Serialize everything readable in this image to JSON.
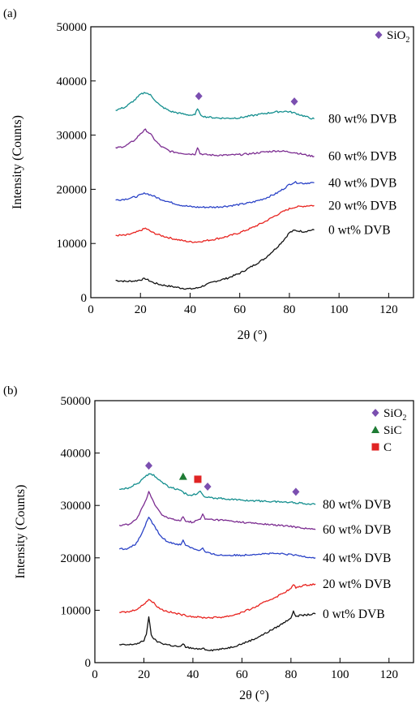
{
  "chart_data": [
    {
      "panel": "(a)",
      "type": "line",
      "xlabel": "2θ (°)",
      "ylabel": "Intensity (Counts)",
      "xlim": [
        0,
        130
      ],
      "ylim": [
        0,
        50000
      ],
      "xticks": [
        0,
        20,
        40,
        60,
        80,
        100,
        120
      ],
      "yticks": [
        0,
        10000,
        20000,
        30000,
        40000,
        50000
      ],
      "legend": [
        {
          "label": "SiO",
          "sub": "2",
          "marker": "diamond",
          "color": "#7b4fb0"
        }
      ],
      "markers": [
        {
          "type": "diamond",
          "color": "#7b4fb0",
          "x": 43.5,
          "y": 37200
        },
        {
          "type": "diamond",
          "color": "#7b4fb0",
          "x": 82,
          "y": 36200
        }
      ],
      "series": [
        {
          "name": "0 wt% DVB",
          "color": "#111111",
          "label_y": 12500,
          "x": [
            10,
            14,
            18,
            22,
            25,
            28,
            32,
            36,
            40,
            43,
            46,
            50,
            55,
            60,
            65,
            70,
            75,
            78,
            80,
            82,
            84,
            86,
            88,
            90
          ],
          "y": [
            3200,
            3000,
            3100,
            3500,
            2800,
            2400,
            2100,
            1800,
            1600,
            1800,
            2300,
            3000,
            3600,
            4500,
            5800,
            7200,
            9300,
            10800,
            12000,
            12400,
            12300,
            12200,
            12400,
            12500
          ]
        },
        {
          "name": "20 wt% DVB",
          "color": "#e8231f",
          "label_y": 17000,
          "x": [
            10,
            14,
            18,
            22,
            25,
            28,
            32,
            36,
            40,
            43,
            46,
            50,
            55,
            60,
            65,
            70,
            75,
            78,
            80,
            82,
            84,
            86,
            88,
            90
          ],
          "y": [
            11500,
            11500,
            12000,
            12800,
            12000,
            11500,
            11000,
            10600,
            10300,
            10300,
            10500,
            10800,
            11300,
            12000,
            12900,
            14000,
            15300,
            16000,
            16400,
            16700,
            16800,
            16900,
            17000,
            17000
          ]
        },
        {
          "name": "40 wt% DVB",
          "color": "#2b43c7",
          "label_y": 21200,
          "x": [
            10,
            14,
            18,
            22,
            25,
            28,
            32,
            36,
            40,
            43,
            46,
            50,
            55,
            60,
            65,
            70,
            75,
            78,
            80,
            82,
            84,
            86,
            88,
            90
          ],
          "y": [
            18000,
            18200,
            18600,
            19300,
            18800,
            18200,
            17600,
            17100,
            16800,
            16700,
            16700,
            16700,
            16900,
            17200,
            17600,
            18300,
            19300,
            20200,
            20900,
            21300,
            21200,
            21100,
            21200,
            21200
          ]
        },
        {
          "name": "60 wt% DVB",
          "color": "#7c2d91",
          "label_y": 26100,
          "x": [
            10,
            14,
            18,
            20,
            22,
            24,
            26,
            28,
            32,
            36,
            40,
            42,
            43,
            44,
            46,
            50,
            55,
            60,
            65,
            70,
            75,
            78,
            80,
            82,
            84,
            86,
            88,
            90
          ],
          "y": [
            27600,
            28000,
            29200,
            30300,
            31000,
            30200,
            29000,
            28000,
            27000,
            26700,
            26500,
            26500,
            27800,
            26600,
            26400,
            26300,
            26300,
            26400,
            26600,
            26900,
            27100,
            27000,
            26900,
            26800,
            26600,
            26400,
            26200,
            26100
          ]
        },
        {
          "name": "80 wt% DVB",
          "color": "#138e8e",
          "label_y": 33000,
          "x": [
            10,
            14,
            18,
            20,
            22,
            24,
            26,
            28,
            32,
            36,
            40,
            42,
            43,
            44,
            46,
            50,
            55,
            60,
            65,
            70,
            75,
            78,
            80,
            82,
            84,
            86,
            88,
            90
          ],
          "y": [
            34600,
            35200,
            36600,
            37500,
            37900,
            37400,
            36400,
            35400,
            34400,
            34000,
            33700,
            33700,
            35000,
            33800,
            33400,
            33200,
            33100,
            33200,
            33600,
            34000,
            34300,
            34400,
            34300,
            34100,
            33800,
            33500,
            33200,
            33000
          ]
        }
      ]
    },
    {
      "panel": "(b)",
      "type": "line",
      "xlabel": "2θ (°)",
      "ylabel": "Intensity (Counts)",
      "xlim": [
        0,
        130
      ],
      "ylim": [
        0,
        50000
      ],
      "xticks": [
        0,
        20,
        40,
        60,
        80,
        100,
        120
      ],
      "yticks": [
        0,
        10000,
        20000,
        30000,
        40000,
        50000
      ],
      "legend": [
        {
          "label": "SiO",
          "sub": "2",
          "marker": "diamond",
          "color": "#7b4fb0"
        },
        {
          "label": "SiC",
          "sub": "",
          "marker": "triangle",
          "color": "#1e7b34"
        },
        {
          "label": "C",
          "sub": "",
          "marker": "square",
          "color": "#e02424"
        }
      ],
      "markers": [
        {
          "type": "diamond",
          "color": "#7b4fb0",
          "x": 22,
          "y": 37600
        },
        {
          "type": "triangle",
          "color": "#1e7b34",
          "x": 36,
          "y": 35500
        },
        {
          "type": "square",
          "color": "#e02424",
          "x": 42,
          "y": 35000
        },
        {
          "type": "diamond",
          "color": "#7b4fb0",
          "x": 46,
          "y": 33600
        },
        {
          "type": "diamond",
          "color": "#7b4fb0",
          "x": 82,
          "y": 32600
        }
      ],
      "series": [
        {
          "name": "0 wt% DVB",
          "color": "#111111",
          "label_y": 9300,
          "x": [
            10,
            14,
            18,
            20,
            21,
            22,
            23,
            25,
            28,
            32,
            35,
            36,
            37,
            40,
            43,
            44,
            45,
            48,
            52,
            56,
            60,
            65,
            70,
            75,
            78,
            80,
            81,
            82,
            84,
            86,
            88,
            90
          ],
          "y": [
            3400,
            3400,
            3700,
            4200,
            5500,
            8800,
            5200,
            4100,
            3600,
            3200,
            3000,
            3600,
            3000,
            2700,
            2500,
            2900,
            2500,
            2400,
            2600,
            3000,
            3600,
            4500,
            5700,
            7000,
            7900,
            8600,
            9700,
            8900,
            9000,
            9100,
            9200,
            9300
          ]
        },
        {
          "name": "20 wt% DVB",
          "color": "#e8231f",
          "label_y": 15000,
          "x": [
            10,
            14,
            18,
            20,
            22,
            24,
            26,
            28,
            32,
            36,
            40,
            44,
            48,
            52,
            56,
            60,
            65,
            70,
            75,
            78,
            80,
            81,
            82,
            84,
            86,
            88,
            90
          ],
          "y": [
            9600,
            9700,
            10400,
            11200,
            12100,
            11400,
            10500,
            10000,
            9500,
            9100,
            8800,
            8600,
            8600,
            8700,
            9000,
            9600,
            10500,
            11700,
            12800,
            13600,
            14100,
            14900,
            14300,
            14600,
            14800,
            14900,
            15000
          ]
        },
        {
          "name": "40 wt% DVB",
          "color": "#2b43c7",
          "label_y": 20000,
          "x": [
            10,
            14,
            17,
            19,
            21,
            22,
            23,
            25,
            27,
            30,
            33,
            35,
            36,
            37,
            40,
            43,
            44,
            45,
            48,
            52,
            56,
            60,
            65,
            70,
            75,
            80,
            85,
            90
          ],
          "y": [
            21700,
            21800,
            22800,
            24500,
            26700,
            27600,
            27000,
            25500,
            24000,
            23000,
            22700,
            22500,
            23300,
            22500,
            21800,
            21400,
            21900,
            21100,
            20700,
            20500,
            20500,
            20500,
            20700,
            20800,
            20800,
            20600,
            20300,
            20000
          ]
        },
        {
          "name": "60 wt% DVB",
          "color": "#7c2d91",
          "label_y": 25400,
          "x": [
            10,
            14,
            17,
            19,
            21,
            22,
            23,
            25,
            27,
            30,
            33,
            35,
            36,
            37,
            40,
            43,
            44,
            45,
            48,
            52,
            56,
            60,
            65,
            70,
            75,
            80,
            85,
            90
          ],
          "y": [
            26200,
            26400,
            27400,
            29200,
            31200,
            32600,
            31500,
            29800,
            28400,
            27600,
            27200,
            27000,
            28000,
            27000,
            26800,
            27400,
            28300,
            27400,
            27300,
            27200,
            27000,
            26800,
            26600,
            26400,
            26200,
            26000,
            25700,
            25400
          ]
        },
        {
          "name": "80 wt% DVB",
          "color": "#138e8e",
          "label_y": 30200,
          "x": [
            10,
            14,
            18,
            20,
            22,
            24,
            26,
            28,
            30,
            32,
            34,
            36,
            38,
            40,
            42,
            43,
            44,
            46,
            50,
            55,
            60,
            65,
            70,
            75,
            80,
            85,
            90
          ],
          "y": [
            33000,
            33400,
            34400,
            35400,
            36000,
            35800,
            35000,
            34200,
            33600,
            33300,
            33000,
            32500,
            32000,
            32000,
            32400,
            32900,
            32000,
            31500,
            31400,
            31200,
            31000,
            30900,
            30800,
            30700,
            30600,
            30400,
            30200
          ]
        }
      ]
    }
  ]
}
